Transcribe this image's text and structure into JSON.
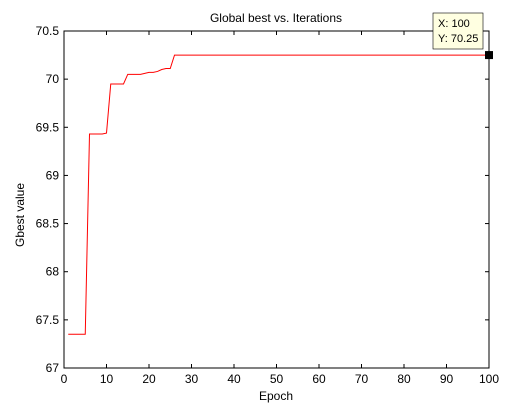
{
  "chart_data": {
    "type": "line",
    "title": "Global best vs. Iterations",
    "xlabel": "Epoch",
    "ylabel": "Gbest value",
    "xlim": [
      0,
      100
    ],
    "ylim": [
      67,
      70.5
    ],
    "xticks": [
      0,
      10,
      20,
      30,
      40,
      50,
      60,
      70,
      80,
      90,
      100
    ],
    "yticks": [
      67,
      67.5,
      68,
      68.5,
      69,
      69.5,
      70,
      70.5
    ],
    "xtick_labels": [
      "0",
      "10",
      "20",
      "30",
      "40",
      "50",
      "60",
      "70",
      "80",
      "90",
      "100"
    ],
    "ytick_labels": [
      "67",
      "67.5",
      "68",
      "68.5",
      "69",
      "69.5",
      "70",
      "70.5"
    ],
    "grid": false,
    "line_color": "#ff0000",
    "series": [
      {
        "x": [
          1,
          2,
          3,
          4,
          5,
          6,
          7,
          8,
          9,
          10,
          11,
          12,
          13,
          14,
          15,
          16,
          17,
          18,
          19,
          20,
          21,
          22,
          23,
          24,
          25,
          26,
          27,
          28,
          29,
          30,
          31,
          32,
          33,
          34,
          35,
          36,
          37,
          38,
          39,
          40,
          41,
          42,
          43,
          44,
          45,
          46,
          47,
          48,
          49,
          50,
          51,
          52,
          53,
          54,
          55,
          56,
          57,
          58,
          59,
          60,
          61,
          62,
          63,
          64,
          65,
          66,
          67,
          68,
          69,
          70,
          71,
          72,
          73,
          74,
          75,
          76,
          77,
          78,
          79,
          80,
          81,
          82,
          83,
          84,
          85,
          86,
          87,
          88,
          89,
          90,
          91,
          92,
          93,
          94,
          95,
          96,
          97,
          98,
          99,
          100
        ],
        "y": [
          67.35,
          67.35,
          67.35,
          67.35,
          67.35,
          69.43,
          69.43,
          69.43,
          69.43,
          69.44,
          69.95,
          69.95,
          69.95,
          69.95,
          70.05,
          70.05,
          70.05,
          70.05,
          70.06,
          70.07,
          70.07,
          70.08,
          70.1,
          70.11,
          70.11,
          70.25,
          70.25,
          70.25,
          70.25,
          70.25,
          70.25,
          70.25,
          70.25,
          70.25,
          70.25,
          70.25,
          70.25,
          70.25,
          70.25,
          70.25,
          70.25,
          70.25,
          70.25,
          70.25,
          70.25,
          70.25,
          70.25,
          70.25,
          70.25,
          70.25,
          70.25,
          70.25,
          70.25,
          70.25,
          70.25,
          70.25,
          70.25,
          70.25,
          70.25,
          70.25,
          70.25,
          70.25,
          70.25,
          70.25,
          70.25,
          70.25,
          70.25,
          70.25,
          70.25,
          70.25,
          70.25,
          70.25,
          70.25,
          70.25,
          70.25,
          70.25,
          70.25,
          70.25,
          70.25,
          70.25,
          70.25,
          70.25,
          70.25,
          70.25,
          70.25,
          70.25,
          70.25,
          70.25,
          70.25,
          70.25,
          70.25,
          70.25,
          70.25,
          70.25,
          70.25,
          70.25,
          70.25,
          70.25,
          70.25,
          70.25
        ]
      }
    ],
    "datatip": {
      "x": 100,
      "y": 70.25,
      "x_text": "X: 100",
      "y_text": "Y: 70.25",
      "background": "#ffffe1",
      "marker_color": "#000000"
    }
  }
}
